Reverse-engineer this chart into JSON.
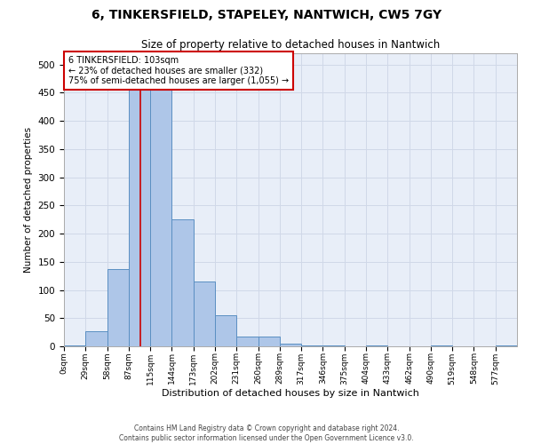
{
  "title": "6, TINKERSFIELD, STAPELEY, NANTWICH, CW5 7GY",
  "subtitle": "Size of property relative to detached houses in Nantwich",
  "xlabel": "Distribution of detached houses by size in Nantwich",
  "ylabel": "Number of detached properties",
  "footer_line1": "Contains HM Land Registry data © Crown copyright and database right 2024.",
  "footer_line2": "Contains public sector information licensed under the Open Government Licence v3.0.",
  "bin_labels": [
    "0sqm",
    "29sqm",
    "58sqm",
    "87sqm",
    "115sqm",
    "144sqm",
    "173sqm",
    "202sqm",
    "231sqm",
    "260sqm",
    "289sqm",
    "317sqm",
    "346sqm",
    "375sqm",
    "404sqm",
    "433sqm",
    "462sqm",
    "490sqm",
    "519sqm",
    "548sqm",
    "577sqm"
  ],
  "bar_heights": [
    1,
    27,
    137,
    455,
    455,
    225,
    115,
    55,
    17,
    17,
    5,
    2,
    1,
    0,
    1,
    0,
    0,
    1,
    0,
    0,
    1
  ],
  "bar_color": "#aec6e8",
  "bar_edge_color": "#5a8fc2",
  "property_line_x": 103,
  "bin_width": 29,
  "ylim": [
    0,
    520
  ],
  "yticks": [
    0,
    50,
    100,
    150,
    200,
    250,
    300,
    350,
    400,
    450,
    500
  ],
  "annotation_title": "6 TINKERSFIELD: 103sqm",
  "annotation_line1": "← 23% of detached houses are smaller (332)",
  "annotation_line2": "75% of semi-detached houses are larger (1,055) →",
  "annotation_box_color": "#ffffff",
  "annotation_box_edge_color": "#cc0000",
  "grid_color": "#d0d8e8",
  "background_color": "#e8eef8"
}
